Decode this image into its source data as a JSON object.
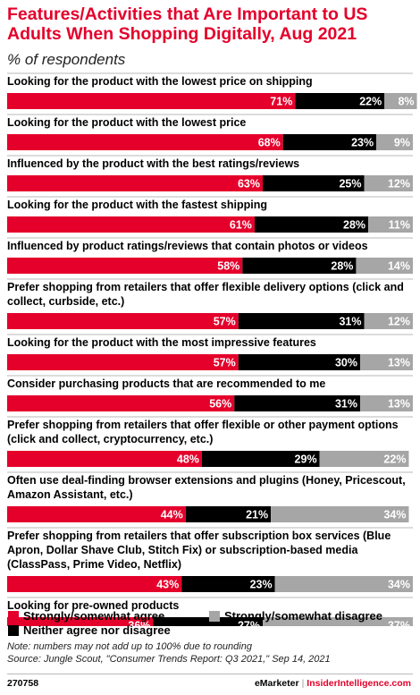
{
  "header": {
    "title": "Features/Activities that Are Important to US\nAdults When Shopping Digitally, Aug 2021",
    "subtitle": "% of respondents"
  },
  "colors": {
    "agree": "#e4002b",
    "neither": "#000000",
    "disagree": "#a6a6a6",
    "title": "#e4002b"
  },
  "chart_data": {
    "type": "bar",
    "orientation": "horizontal",
    "stacked": true,
    "title": "Features/Activities that Are Important to US Adults When Shopping Digitally, Aug 2021",
    "subtitle": "% of respondents",
    "unit": "%",
    "xlim": [
      0,
      100
    ],
    "grid": false,
    "legend_position": "bottom",
    "categories": [
      "Looking for the product with the lowest price on shipping",
      "Looking for the product with the lowest price",
      "Influenced by the product with the best ratings/reviews",
      "Looking for the product with the fastest shipping",
      "Influenced by product ratings/reviews that contain photos or videos",
      "Prefer shopping from retailers that offer flexible delivery options (click and collect, curbside, etc.)",
      "Looking for the product with the most impressive features",
      "Consider purchasing products that are recommended to me",
      "Prefer shopping from retailers that offer flexible or other payment options (click and collect, cryptocurrency, etc.)",
      "Often use deal-finding browser extensions and plugins (Honey, Pricescout, Amazon Assistant, etc.)",
      "Prefer shopping from retailers that offer subscription box services (Blue Apron, Dollar Shave Club, Stitch Fix) or subscription-based media (ClassPass, Prime Video, Netflix)",
      "Looking for pre-owned products"
    ],
    "category_lines": [
      [
        "Looking for the product with the lowest price on shipping"
      ],
      [
        "Looking for the product with the lowest price"
      ],
      [
        "Influenced by the product with the best ratings/reviews"
      ],
      [
        "Looking for the product with the fastest shipping"
      ],
      [
        "Influenced by product ratings/reviews that contain photos or videos"
      ],
      [
        "Prefer shopping from retailers that offer flexible delivery options (click and",
        "collect, curbside, etc.)"
      ],
      [
        "Looking for the product with the most impressive features"
      ],
      [
        "Consider purchasing products that are recommended to me"
      ],
      [
        "Prefer shopping from retailers that offer flexible or other payment options",
        "(click and collect, cryptocurrency, etc.)"
      ],
      [
        "Often use deal-finding browser extensions and plugins (Honey, Pricescout,",
        "Amazon Assistant, etc.)"
      ],
      [
        "Prefer shopping from retailers that offer subscription box services (Blue",
        "Apron, Dollar Shave Club, Stitch Fix) or subscription-based media",
        "(ClassPass, Prime Video, Netflix)"
      ],
      [
        "Looking for pre-owned products"
      ]
    ],
    "series": [
      {
        "name": "Strongly/somewhat agree",
        "values": [
          71,
          68,
          63,
          61,
          58,
          57,
          57,
          56,
          48,
          44,
          43,
          36
        ]
      },
      {
        "name": "Neither agree nor disagree",
        "values": [
          22,
          23,
          25,
          28,
          28,
          31,
          30,
          31,
          29,
          21,
          23,
          27
        ]
      },
      {
        "name": "Strongly/somewhat disagree",
        "values": [
          8,
          9,
          12,
          11,
          14,
          12,
          13,
          13,
          22,
          34,
          34,
          37
        ]
      }
    ]
  },
  "legend": {
    "agree": "Strongly/somewhat agree",
    "disagree": "Strongly/somewhat disagree",
    "neither": "Neither agree nor disagree"
  },
  "footer": {
    "note": "Note: numbers may not add up to 100% due to rounding",
    "source": "Source: Jungle Scout, \"Consumer Trends Report: Q3 2021,\" Sep 14, 2021",
    "chart_id": "270758",
    "brand_emarketer": "eMarketer",
    "separator": "|",
    "brand_ii": "InsiderIntelligence.com"
  }
}
